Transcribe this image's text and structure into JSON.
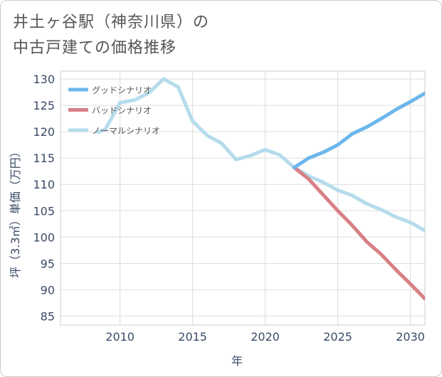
{
  "title": {
    "line1": "井土ヶ谷駅（神奈川県）の",
    "line2": "中古戸建ての価格推移"
  },
  "chart_data": {
    "type": "line",
    "xlabel": "年",
    "ylabel": "坪（3.3㎡）単価（万円）",
    "xlim": [
      2005.9,
      2031
    ],
    "ylim": [
      83.3,
      131.5
    ],
    "xticks": [
      2010,
      2015,
      2020,
      2025,
      2030
    ],
    "yticks": [
      85,
      90,
      95,
      100,
      105,
      110,
      115,
      120,
      125,
      130
    ],
    "grid": true,
    "legend_position": "top-left",
    "series": [
      {
        "name": "グッドシナリオ",
        "color": "#6cb7ec",
        "x": [
          2022,
          2023,
          2024,
          2025,
          2026,
          2027,
          2028,
          2029,
          2030,
          2031
        ],
        "y": [
          113.2,
          115.0,
          116.1,
          117.5,
          119.6,
          120.9,
          122.5,
          124.2,
          125.7,
          127.3
        ]
      },
      {
        "name": "バッドシナリオ",
        "color": "#d97f86",
        "x": [
          2022,
          2023,
          2024,
          2025,
          2026,
          2027,
          2028,
          2029,
          2030,
          2031
        ],
        "y": [
          113.2,
          111.0,
          108.0,
          105.0,
          102.2,
          99.1,
          96.7,
          93.8,
          91.1,
          88.3
        ]
      },
      {
        "name": "ノーマルシナリオ",
        "color": "#b5dcec",
        "x": [
          2008.5,
          2009,
          2010,
          2011,
          2012,
          2013,
          2014,
          2015,
          2016,
          2017,
          2018,
          2019,
          2020,
          2021,
          2022,
          2023,
          2024,
          2025,
          2026,
          2027,
          2028,
          2029,
          2030,
          2031
        ],
        "y": [
          119.9,
          120.5,
          125.5,
          126.0,
          127.4,
          130.0,
          128.5,
          122.0,
          119.3,
          117.8,
          114.7,
          115.5,
          116.6,
          115.6,
          113.2,
          111.6,
          110.4,
          108.9,
          107.9,
          106.3,
          105.2,
          103.8,
          102.8,
          101.2
        ]
      }
    ]
  }
}
